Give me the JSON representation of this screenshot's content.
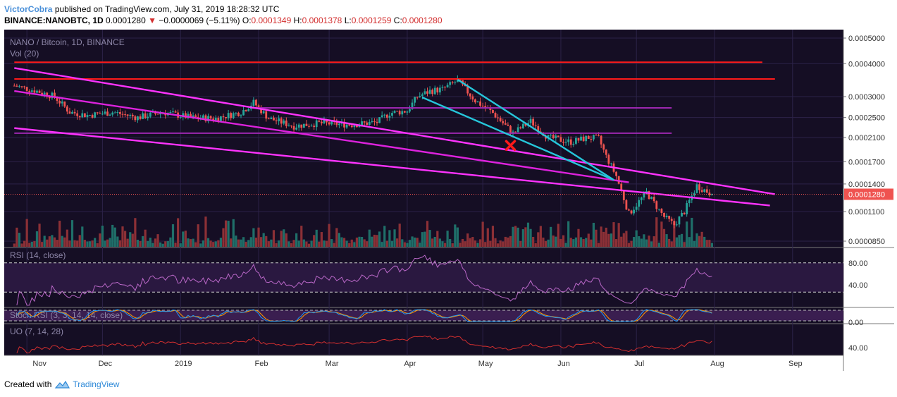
{
  "header": {
    "author": "VictorCobra",
    "published_text": "published on TradingView.com, July 31, 2019 18:28:32 UTC",
    "symbol": "BINANCE:NANOBTC, 1D",
    "price": "0.0001280",
    "arrow": "▼",
    "change": "−0.0000069 (−5.11%)",
    "o_label": "O:",
    "o_value": "0.0001349",
    "h_label": "H:",
    "h_value": "0.0001378",
    "l_label": "L:",
    "l_value": "0.0001259",
    "c_label": "C:",
    "c_value": "0.0001280"
  },
  "footer": {
    "created_with": "Created with",
    "brand": "TradingView",
    "logo_icon": "tradingview-cloud-icon"
  },
  "chart_data": {
    "type": "candlestick",
    "pane_title": "NANO / Bitcoin, 1D, BINANCE",
    "volume_label": "Vol (20)",
    "log_scale": true,
    "ylim": [
      8.5e-05,
      0.00053
    ],
    "y_ticks": [
      "0.0005000",
      "0.0004000",
      "0.0003000",
      "0.0002500",
      "0.0002100",
      "0.0001700",
      "0.0001400",
      "0.0001100",
      "0.0000850"
    ],
    "current_price_label": "0.0001280",
    "current_price": 0.000128,
    "x_labels": [
      "Nov",
      "Dec",
      "2019",
      "Feb",
      "Mar",
      "Apr",
      "May",
      "Jun",
      "Jul",
      "Aug",
      "Sep"
    ],
    "x_dates": [
      "2018-11-01",
      "2018-12-01",
      "2019-01-01",
      "2019-02-01",
      "2019-03-01",
      "2019-04-01",
      "2019-05-01",
      "2019-06-01",
      "2019-07-01",
      "2019-08-01",
      "2019-09-01"
    ],
    "date_range": [
      "2018-10-27",
      "2019-07-31"
    ],
    "price_path": [
      [
        "2018-10-27",
        0.00033
      ],
      [
        "2018-11-05",
        0.000315
      ],
      [
        "2018-11-12",
        0.0003
      ],
      [
        "2018-11-18",
        0.000262
      ],
      [
        "2018-11-25",
        0.000255
      ],
      [
        "2018-12-05",
        0.000262
      ],
      [
        "2018-12-15",
        0.00025
      ],
      [
        "2018-12-25",
        0.000262
      ],
      [
        "2019-01-05",
        0.00025
      ],
      [
        "2019-01-15",
        0.000248
      ],
      [
        "2019-01-25",
        0.000262
      ],
      [
        "2019-01-30",
        0.000285
      ],
      [
        "2019-02-05",
        0.000248
      ],
      [
        "2019-02-15",
        0.000232
      ],
      [
        "2019-02-25",
        0.000238
      ],
      [
        "2019-03-10",
        0.000235
      ],
      [
        "2019-03-20",
        0.00024
      ],
      [
        "2019-03-25",
        0.00026
      ],
      [
        "2019-04-01",
        0.000265
      ],
      [
        "2019-04-05",
        0.0003
      ],
      [
        "2019-04-10",
        0.000315
      ],
      [
        "2019-04-15",
        0.00032
      ],
      [
        "2019-04-21",
        0.000345
      ],
      [
        "2019-04-28",
        0.00029
      ],
      [
        "2019-05-05",
        0.00026
      ],
      [
        "2019-05-13",
        0.000218
      ],
      [
        "2019-05-20",
        0.000242
      ],
      [
        "2019-05-27",
        0.00021
      ],
      [
        "2019-06-05",
        0.000202
      ],
      [
        "2019-06-12",
        0.00021
      ],
      [
        "2019-06-16",
        0.000208
      ],
      [
        "2019-06-19",
        0.000178
      ],
      [
        "2019-06-23",
        0.00015
      ],
      [
        "2019-06-28",
        0.000108
      ],
      [
        "2019-07-05",
        0.00013
      ],
      [
        "2019-07-12",
        0.000105
      ],
      [
        "2019-07-16",
        9.8e-05
      ],
      [
        "2019-07-20",
        0.00011
      ],
      [
        "2019-07-25",
        0.000138
      ],
      [
        "2019-07-31",
        0.000128
      ]
    ],
    "horizontal_levels": [
      {
        "price": 0.000405,
        "color": "#ff1a1a",
        "from": "2018-10-27",
        "to": "2019-08-20"
      },
      {
        "price": 0.00035,
        "color": "#ff1a1a",
        "from": "2018-10-27",
        "to": "2019-08-25"
      },
      {
        "price": 0.000272,
        "color": "#9c27b0",
        "from": "2019-01-29",
        "to": "2019-07-15"
      },
      {
        "price": 0.000218,
        "color": "#9c27b0",
        "from": "2018-10-27",
        "to": "2019-07-15"
      }
    ],
    "trendlines": [
      {
        "color": "#ff33ff",
        "p1": [
          "2018-10-27",
          0.000385
        ],
        "p2": [
          "2019-08-25",
          0.000128
        ]
      },
      {
        "color": "#ff33ff",
        "p1": [
          "2018-10-27",
          0.000228
        ],
        "p2": [
          "2019-08-23",
          0.000116
        ]
      },
      {
        "color": "#dd22dd",
        "p1": [
          "2018-10-27",
          0.000315
        ],
        "p2": [
          "2019-06-28",
          0.000142
        ]
      },
      {
        "color": "#26c6da",
        "p1": [
          "2019-04-21",
          0.000348
        ],
        "p2": [
          "2019-06-22",
          0.000145
        ]
      },
      {
        "color": "#26c6da",
        "p1": [
          "2019-04-07",
          0.000298
        ],
        "p2": [
          "2019-06-22",
          0.000145
        ]
      }
    ],
    "marker": {
      "type": "cross",
      "color": "#ff1a1a",
      "date": "2019-05-12",
      "price": 0.000196
    },
    "indicators": [
      {
        "name": "RSI",
        "label": "RSI (14, close)",
        "ticks": [
          "80.00",
          "40.00"
        ],
        "bands": [
          70,
          30
        ],
        "ylim": [
          10,
          90
        ],
        "color": "#ba68c8"
      },
      {
        "name": "StochRSI",
        "label": "Stoch RSI (3, 3, 14, 14, close)",
        "ticks": [
          "0.00"
        ],
        "color": "#ff9800",
        "color2": "#2196f3"
      },
      {
        "name": "UO",
        "label": "UO (7, 14, 28)",
        "ticks": [
          "40.00"
        ],
        "ylim": [
          25,
          85
        ],
        "color": "#d32f2f"
      }
    ]
  }
}
